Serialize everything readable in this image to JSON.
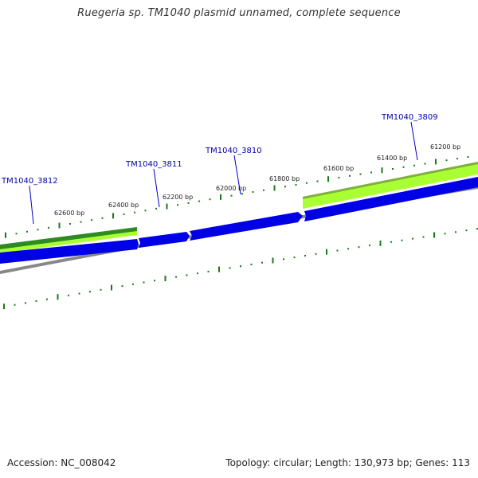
{
  "title": "Ruegeria sp. TM1040 plasmid unnamed, complete sequence",
  "footer": {
    "accession": "Accession: NC_008042",
    "topology": "Topology: circular; Length: 130,973 bp; Genes: 113"
  },
  "position_labels": [
    "62600 bp",
    "62400 bp",
    "62200 bp",
    "62000 bp",
    "61800 bp",
    "61600 bp",
    "61400 bp",
    "61200 bp"
  ],
  "gene_labels": [
    "TM1040_3812",
    "TM1040_3811",
    "TM1040_3810",
    "TM1040_3809"
  ],
  "colors": {
    "gene_fill": "#0000e6",
    "feature_dark_green": "#2e8b22",
    "feature_light_green": "#aaff33",
    "backbone_gray": "#888888",
    "tick_green": "#1a7a1a",
    "gene_label_blue": "#0000aa"
  }
}
